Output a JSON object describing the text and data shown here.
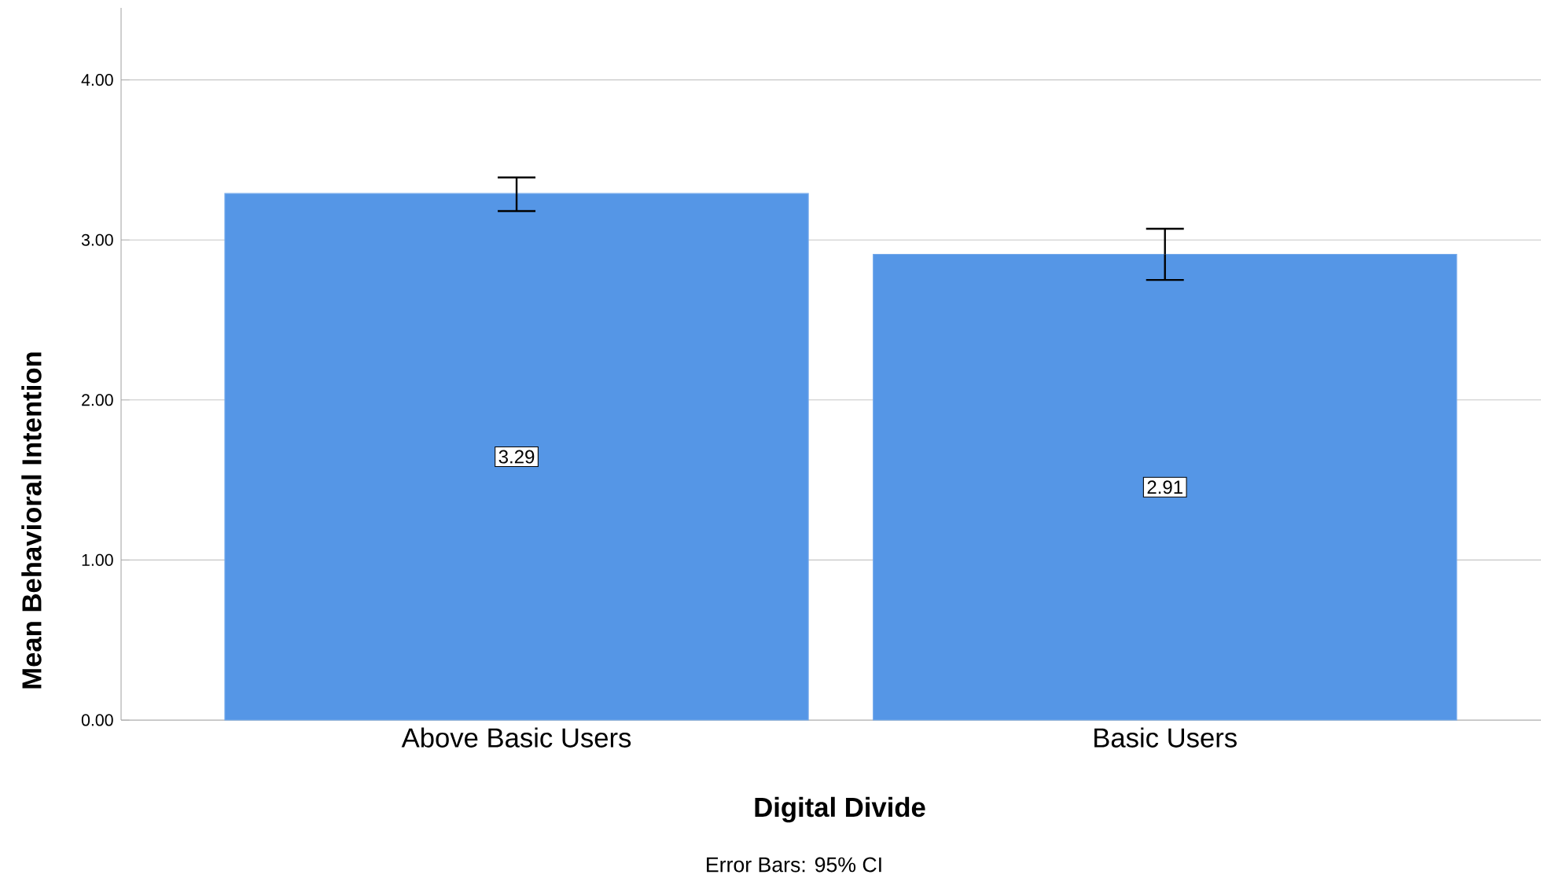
{
  "chart_data": {
    "type": "bar",
    "categories": [
      "Above Basic Users",
      "Basic Users"
    ],
    "values": [
      3.29,
      2.91
    ],
    "errors": [
      [
        3.18,
        3.39
      ],
      [
        2.75,
        3.07
      ]
    ],
    "color": "#5596e6",
    "data_labels": true,
    "xlabel": "Digital Divide",
    "ylabel": "Mean Behavioral Intention",
    "ylim": [
      0,
      4.45
    ],
    "yticks": [
      {
        "value": 0,
        "label": "0.00"
      },
      {
        "value": 1,
        "label": "1.00"
      },
      {
        "value": 2,
        "label": "2.00"
      },
      {
        "value": 3,
        "label": "3.00"
      },
      {
        "value": 4,
        "label": "4.00"
      }
    ],
    "grid": "y",
    "annotations": [
      "Error Bars: 95% CI"
    ]
  }
}
